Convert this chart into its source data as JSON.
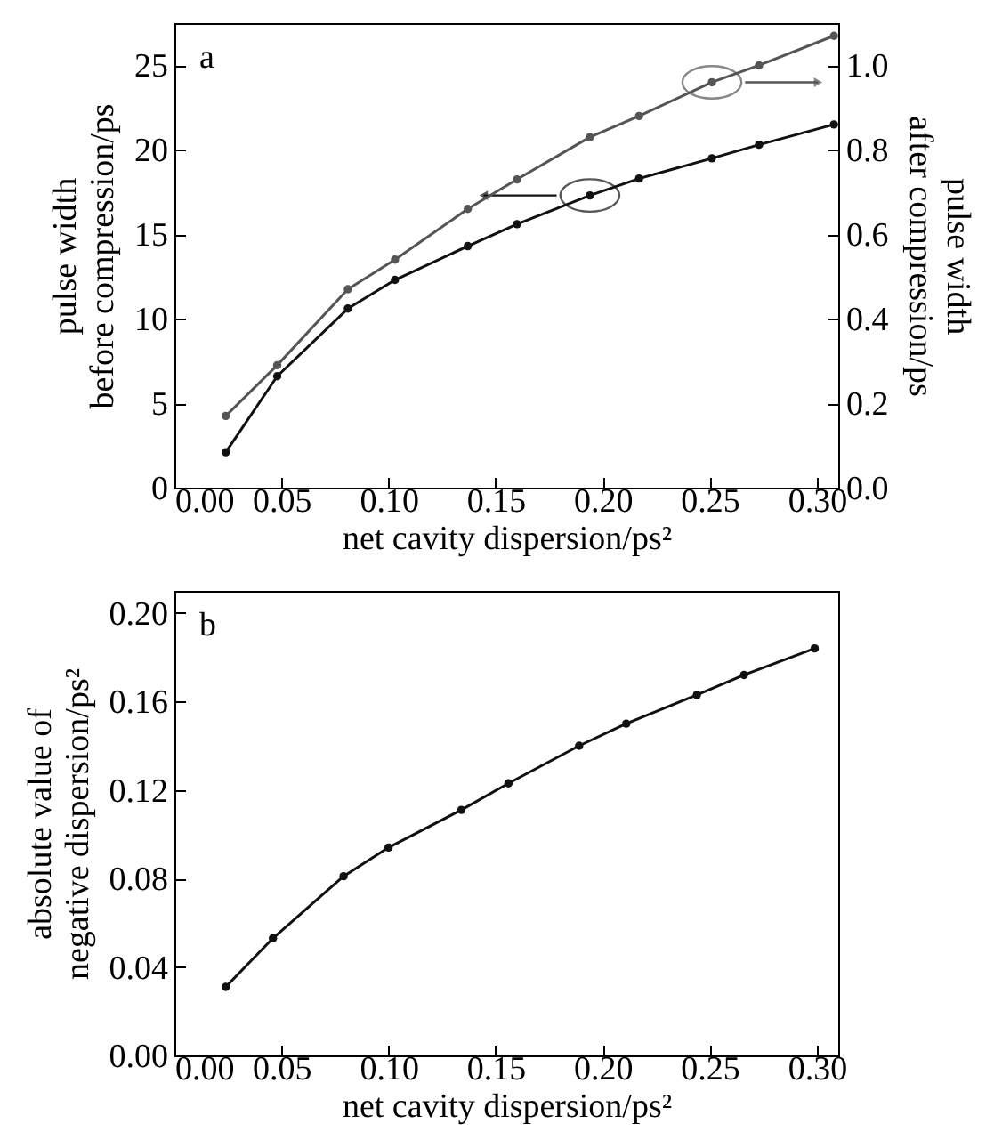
{
  "chart_data": [
    {
      "type": "line",
      "annotations": [
        "a"
      ],
      "xlabel": "net cavity dispersion/ps²",
      "ylabel": "pulse width\nbefore compression/ps",
      "y2label": "pulse width\nafter compression/ps",
      "x": [
        0.024,
        0.048,
        0.081,
        0.103,
        0.137,
        0.16,
        0.194,
        0.217,
        0.251,
        0.273,
        0.308
      ],
      "series": [
        {
          "color": "#111111",
          "values": [
            2.1,
            6.6,
            10.6,
            12.3,
            14.3,
            15.6,
            17.3,
            18.3,
            19.5,
            20.3,
            21.5
          ]
        },
        {
          "color": "#555555",
          "axis": "y2",
          "values": [
            0.17,
            0.29,
            0.47,
            0.54,
            0.66,
            0.73,
            0.83,
            0.88,
            0.96,
            1.0,
            1.07
          ]
        }
      ],
      "xlim": [
        0,
        0.31
      ],
      "xticks": [
        {
          "value": 0,
          "label": "0.00"
        },
        {
          "value": 0.05,
          "label": "0.05"
        },
        {
          "value": 0.1,
          "label": "0.10"
        },
        {
          "value": 0.15,
          "label": "0.15"
        },
        {
          "value": 0.2,
          "label": "0.20"
        },
        {
          "value": 0.25,
          "label": "0.25"
        },
        {
          "value": 0.3,
          "label": "0.30"
        }
      ],
      "ylim": [
        0,
        27.5
      ],
      "yticks": [
        0,
        5,
        10,
        15,
        20,
        25
      ],
      "y2lim": [
        0,
        1.1
      ],
      "y2ticks": [
        {
          "value": 0,
          "label": "0.0"
        },
        {
          "value": 0.2,
          "label": "0.2"
        },
        {
          "value": 0.4,
          "label": "0.4"
        },
        {
          "value": 0.6,
          "label": "0.6"
        },
        {
          "value": 0.8,
          "label": "0.8"
        },
        {
          "value": 1,
          "label": "1.0"
        }
      ],
      "marker": "circle",
      "grid": false
    },
    {
      "type": "line",
      "annotations": [
        "b"
      ],
      "xlabel": "net cavity dispersion/ps²",
      "ylabel": "absolute value of\nnegative dispersion/ps²",
      "x": [
        0.024,
        0.046,
        0.079,
        0.1,
        0.134,
        0.156,
        0.189,
        0.211,
        0.244,
        0.266,
        0.299
      ],
      "series": [
        {
          "color": "#111111",
          "values": [
            0.031,
            0.053,
            0.081,
            0.094,
            0.111,
            0.123,
            0.14,
            0.15,
            0.163,
            0.172,
            0.184
          ]
        }
      ],
      "xlim": [
        0,
        0.31
      ],
      "xticks": [
        {
          "value": 0,
          "label": "0.00"
        },
        {
          "value": 0.05,
          "label": "0.05"
        },
        {
          "value": 0.1,
          "label": "0.10"
        },
        {
          "value": 0.15,
          "label": "0.15"
        },
        {
          "value": 0.2,
          "label": "0.20"
        },
        {
          "value": 0.25,
          "label": "0.25"
        },
        {
          "value": 0.3,
          "label": "0.30"
        }
      ],
      "ylim": [
        0,
        0.21
      ],
      "yticks": [
        {
          "value": 0,
          "label": "0.00"
        },
        {
          "value": 0.04,
          "label": "0.04"
        },
        {
          "value": 0.08,
          "label": "0.08"
        },
        {
          "value": 0.12,
          "label": "0.12"
        },
        {
          "value": 0.16,
          "label": "0.16"
        },
        {
          "value": 0.2,
          "label": "0.20"
        }
      ],
      "marker": "circle",
      "grid": false
    }
  ]
}
